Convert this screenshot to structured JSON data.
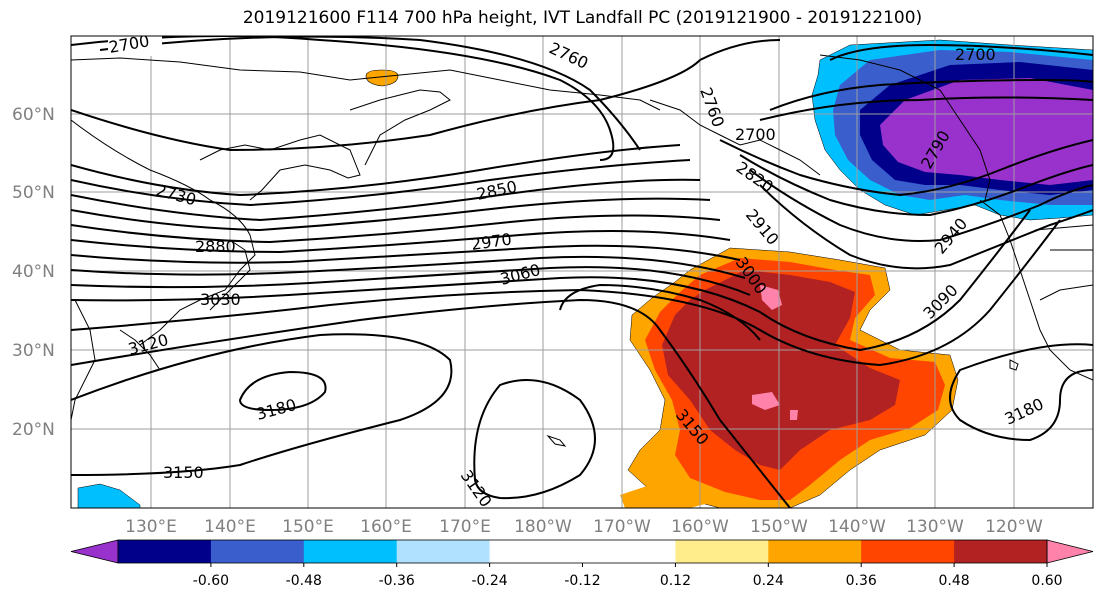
{
  "title": "2019121600 F114 700 hPa height, IVT Landfall PC (2019121900 - 2019122100)",
  "lat_labels": [
    "60°N",
    "50°N",
    "40°N",
    "30°N",
    "20°N"
  ],
  "lon_labels": [
    "130°E",
    "140°E",
    "150°E",
    "160°E",
    "170°E",
    "180°W",
    "170°W",
    "160°W",
    "150°W",
    "140°W",
    "130°W",
    "120°W"
  ],
  "colorbar": {
    "colors": [
      "#9932cc",
      "#00008b",
      "#3a5fcd",
      "#00bfff",
      "#b0e2ff",
      "#ffffff",
      "#ffffff",
      "#ffec8b",
      "#ffa500",
      "#ff4500",
      "#b22222",
      "#ff82ab"
    ],
    "tick_labels": [
      "-0.60",
      "-0.48",
      "-0.36",
      "-0.24",
      "-0.12",
      "0.12",
      "0.24",
      "0.36",
      "0.48",
      "0.60"
    ]
  },
  "contour_labels": [
    "2700",
    "2760",
    "2700",
    "2820",
    "2760",
    "2700",
    "2730",
    "2850",
    "2880",
    "2910",
    "2970",
    "3000",
    "3030",
    "3060",
    "3090",
    "2940",
    "2790",
    "3120",
    "3180",
    "3150",
    "3120",
    "3150",
    "3180"
  ]
}
